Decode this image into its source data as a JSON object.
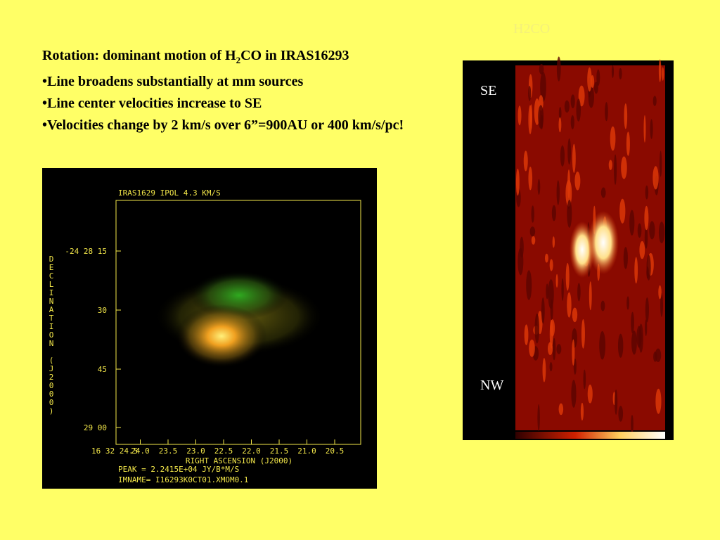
{
  "header": {
    "title": "H2CO"
  },
  "bullets": {
    "line1": {
      "before": "Rotation:  dominant motion of H",
      "sub": "2",
      "after": "CO in IRAS16293"
    },
    "items": [
      "•Line broadens substantially at mm sources",
      "•Line center velocities increase to SE",
      "•Velocities change by 2 km/s over 6”=900AU or 400 km/s/pc!"
    ]
  },
  "left_image": {
    "title": "IRAS1629 IPOL  4.3 KM/S",
    "y_axis_label": "DECLINATION (J2000)",
    "yticks": [
      "-24 28 15",
      "30",
      "45",
      "29 00"
    ],
    "xticks": [
      "16 32 24.5",
      "24.0",
      "23.5",
      "23.0",
      "22.5",
      "22.0",
      "21.5",
      "21.0",
      "20.5"
    ],
    "x_axis_label": "RIGHT ASCENSION (J2000)",
    "peak": "PEAK =  2.2415E+04 JY/B*M/S",
    "imname": "IMNAME= I16293K0CT01.XMOM0.1"
  },
  "right_image": {
    "top_label": "SE",
    "bottom_label": "NW"
  }
}
